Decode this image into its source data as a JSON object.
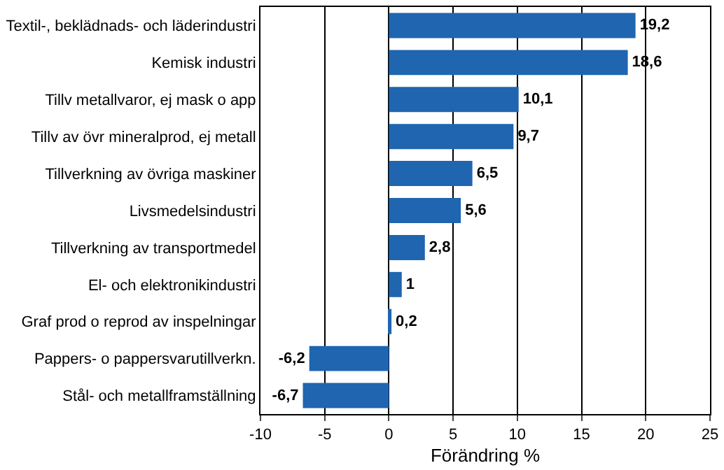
{
  "chart_data": {
    "type": "bar",
    "orientation": "horizontal",
    "xlabel": "Förändring %",
    "categories": [
      "Textil-, beklädnads- och läderindustri",
      "Kemisk industri",
      "Tillv metallvaror, ej mask o app",
      "Tillv av övr mineralprod, ej metall",
      "Tillverkning av övriga maskiner",
      "Livsmedelsindustri",
      "Tillverkning av transportmedel",
      "El- och elektronikindustri",
      "Graf prod o reprod av inspelningar",
      "Pappers- o pappersvarutillverkn.",
      "Stål- och metallframställning"
    ],
    "values": [
      19.2,
      18.6,
      10.1,
      9.7,
      6.5,
      5.6,
      2.8,
      1,
      0.2,
      -6.2,
      -6.7
    ],
    "value_labels": [
      "19,2",
      "18,6",
      "10,1",
      "9,7",
      "6,5",
      "5,6",
      "2,8",
      "1",
      "0,2",
      "-6,2",
      "-6,7"
    ],
    "color": "#1f65b0",
    "xlim": [
      -10,
      25
    ],
    "xticks": [
      -10,
      -5,
      0,
      5,
      10,
      15,
      20,
      25
    ],
    "grid": "x",
    "legend": false
  }
}
